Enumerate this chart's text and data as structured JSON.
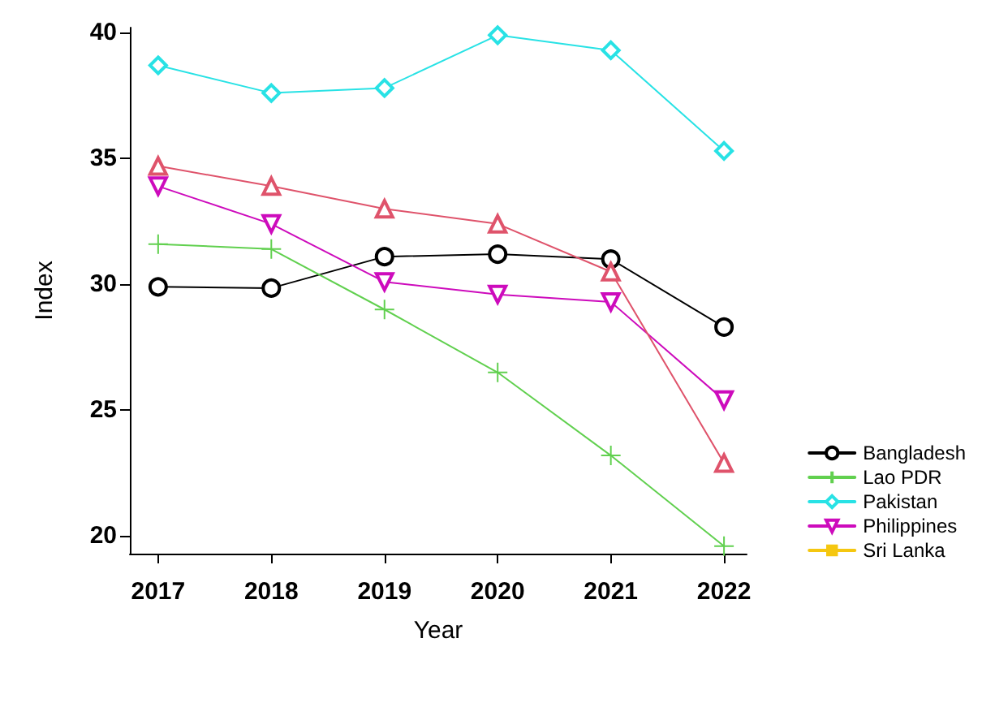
{
  "chart_data": {
    "type": "line",
    "xlabel": "Year",
    "ylabel": "Index",
    "x": [
      2017,
      2018,
      2019,
      2020,
      2021,
      2022
    ],
    "xlim": [
      2016.75,
      2022.2
    ],
    "xticks": [
      2017,
      2018,
      2019,
      2020,
      2021,
      2022
    ],
    "ylim": [
      19.3,
      40.2
    ],
    "yticks": [
      20,
      25,
      30,
      35,
      40
    ],
    "grid": false,
    "legend": "right",
    "series": [
      {
        "name": "Bangladesh",
        "color": "#000000",
        "marker": "circle",
        "values": [
          29.9,
          29.85,
          31.1,
          31.2,
          31.0,
          28.3
        ]
      },
      {
        "name": "Lao PDR",
        "color": "#61d04f",
        "marker": "cross",
        "values": [
          31.6,
          31.4,
          29.0,
          26.5,
          23.2,
          19.6
        ]
      },
      {
        "name": "Pakistan",
        "color": "#28e2e5",
        "marker": "diamond",
        "values": [
          38.7,
          37.6,
          37.8,
          39.9,
          39.3,
          35.3
        ]
      },
      {
        "name": "Philippines",
        "color": "#cd0bbc",
        "marker": "triangle-down",
        "values": [
          33.9,
          32.4,
          30.1,
          29.6,
          29.3,
          25.4
        ]
      },
      {
        "name": "Sri Lanka",
        "color": "#f5c710",
        "marker": "square",
        "values": [
          null,
          null,
          null,
          null,
          null,
          null
        ]
      },
      {
        "color": "#df536b",
        "marker": "triangle",
        "values": [
          34.7,
          33.9,
          33.0,
          32.4,
          30.5,
          22.9
        ]
      }
    ]
  }
}
